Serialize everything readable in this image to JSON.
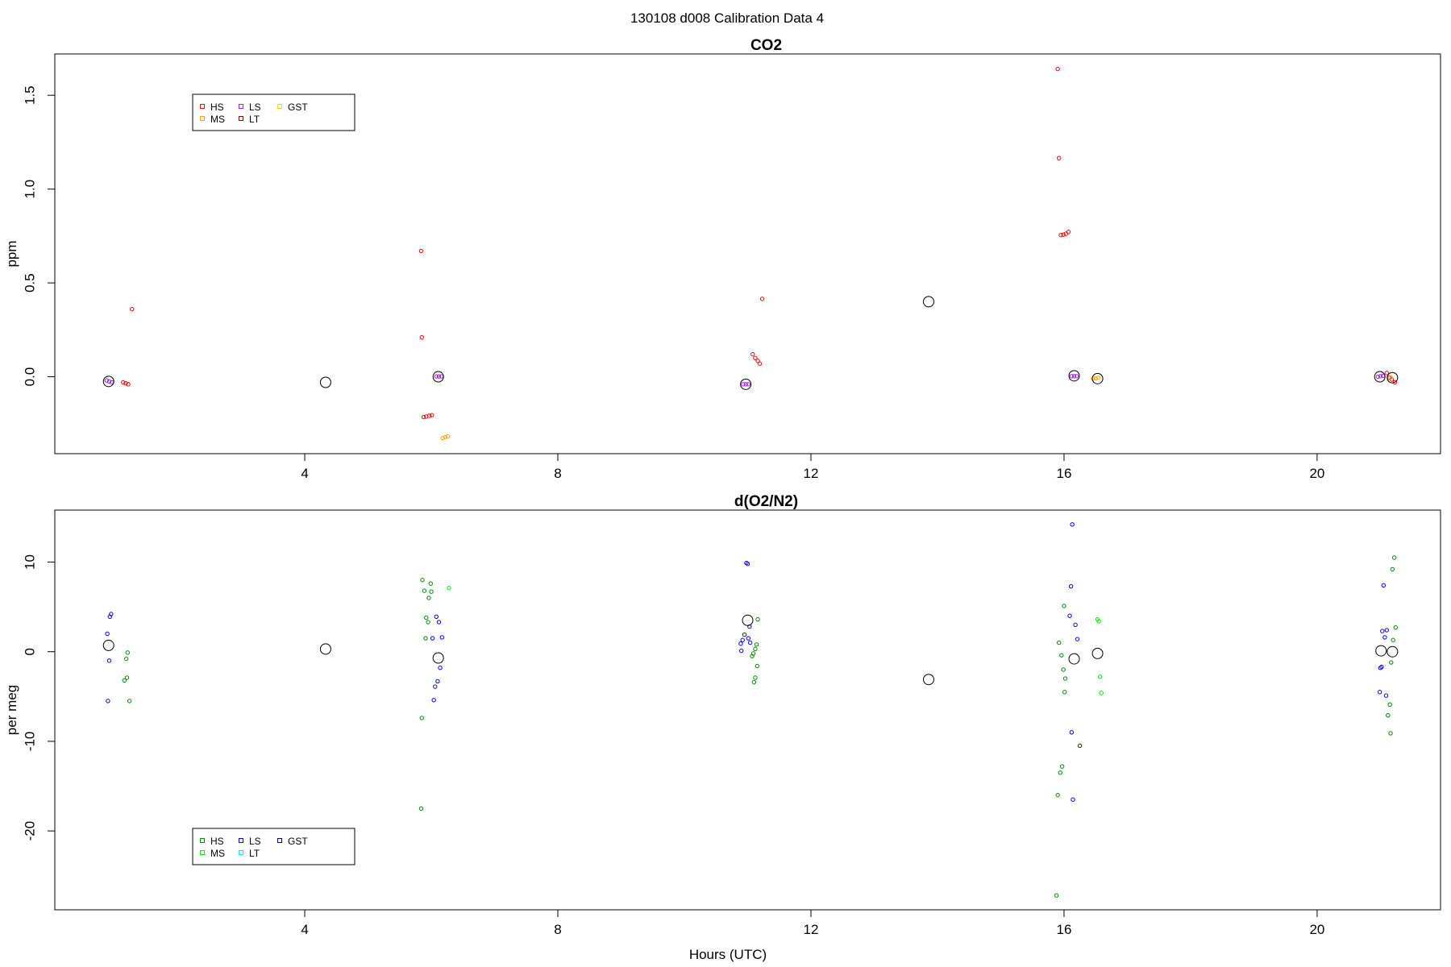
{
  "figure": {
    "title": "130108   d008   Calibration Data 4",
    "xlabel": "Hours (UTC)"
  },
  "colors": {
    "HS": "#ff0000",
    "MS": "#ffa500",
    "LS": "#a020f0",
    "LT": "#8b0000",
    "GST": "#ffd700",
    "HS2": "#008b00",
    "MS2": "#00ee00",
    "LS2": "#0000ff",
    "LT2": "#00eeee",
    "GST2": "#00008b"
  },
  "chart_data": [
    {
      "type": "scatter",
      "title": "CO2",
      "xlabel": "Hours (UTC)",
      "ylabel": "ppm",
      "xlim": [
        0.05,
        21.95
      ],
      "ylim": [
        -0.41,
        1.72
      ],
      "xticks": [
        "4",
        "8",
        "12",
        "16",
        "20"
      ],
      "yticks": [
        "0.0",
        "0.5",
        "1.0",
        "1.5"
      ],
      "legend": {
        "placement": "top-left",
        "entries": [
          "HS",
          "MS",
          "LS",
          "LT",
          "GST"
        ]
      },
      "series": [
        {
          "name": "HS",
          "color": "#ff0000",
          "points": [
            [
              1.27,
              0.36
            ],
            [
              1.13,
              -0.03
            ],
            [
              1.17,
              -0.035
            ],
            [
              1.21,
              -0.04
            ],
            [
              5.84,
              0.67
            ],
            [
              5.85,
              0.21
            ],
            [
              5.88,
              -0.215
            ],
            [
              5.92,
              -0.212
            ],
            [
              5.97,
              -0.208
            ],
            [
              6.01,
              -0.205
            ],
            [
              11.23,
              0.415
            ],
            [
              11.08,
              0.12
            ],
            [
              11.12,
              0.1
            ],
            [
              11.16,
              0.085
            ],
            [
              11.19,
              0.07
            ],
            [
              15.9,
              1.64
            ],
            [
              15.92,
              1.165
            ],
            [
              15.95,
              0.755
            ],
            [
              15.99,
              0.757
            ],
            [
              16.03,
              0.762
            ],
            [
              16.07,
              0.772
            ],
            [
              21.1,
              0.02
            ],
            [
              21.14,
              -0.005
            ],
            [
              21.18,
              -0.015
            ],
            [
              21.23,
              -0.03
            ]
          ]
        },
        {
          "name": "MS",
          "color": "#ffa500",
          "points": [
            [
              6.18,
              -0.327
            ],
            [
              6.22,
              -0.322
            ],
            [
              6.26,
              -0.318
            ],
            [
              16.46,
              -0.01
            ],
            [
              16.5,
              -0.008
            ],
            [
              16.54,
              -0.005
            ],
            [
              21.16,
              -0.003
            ]
          ]
        },
        {
          "name": "LS",
          "color": "#a020f0",
          "points": [
            [
              0.87,
              -0.02
            ],
            [
              0.91,
              -0.025
            ],
            [
              0.95,
              -0.03
            ],
            [
              6.08,
              0.002
            ],
            [
              6.12,
              0.002
            ],
            [
              6.16,
              0.002
            ],
            [
              10.93,
              -0.04
            ],
            [
              10.97,
              -0.04
            ],
            [
              11.01,
              -0.04
            ],
            [
              16.12,
              0.003
            ],
            [
              16.16,
              0.003
            ],
            [
              16.2,
              0.003
            ],
            [
              20.96,
              0.0
            ],
            [
              21.0,
              0.003
            ],
            [
              21.04,
              0.005
            ]
          ]
        }
      ],
      "means": [
        [
          0.9,
          -0.025
        ],
        [
          4.33,
          -0.03
        ],
        [
          6.11,
          0.0
        ],
        [
          10.97,
          -0.04
        ],
        [
          13.86,
          0.4
        ],
        [
          16.16,
          0.005
        ],
        [
          16.53,
          -0.01
        ],
        [
          20.99,
          0.0
        ],
        [
          21.19,
          -0.005
        ]
      ]
    },
    {
      "type": "scatter",
      "title": "d(O2/N2)",
      "xlabel": "Hours (UTC)",
      "ylabel": "per meg",
      "xlim": [
        0.05,
        21.95
      ],
      "ylim": [
        -28.8,
        15.8
      ],
      "xticks": [
        "4",
        "8",
        "12",
        "16",
        "20"
      ],
      "yticks": [
        "-20",
        "-10",
        "0",
        "10"
      ],
      "legend": {
        "placement": "bottom-left",
        "entries": [
          "HS",
          "MS",
          "LS",
          "LT",
          "GST"
        ]
      },
      "series": [
        {
          "name": "HS",
          "color": "#008b00",
          "points": [
            [
              1.2,
              -0.1
            ],
            [
              1.18,
              -0.8
            ],
            [
              1.15,
              -3.2
            ],
            [
              1.19,
              -2.9
            ],
            [
              1.23,
              -5.5
            ],
            [
              5.86,
              8.0
            ],
            [
              5.99,
              7.6
            ],
            [
              5.89,
              6.8
            ],
            [
              6.0,
              6.7
            ],
            [
              5.96,
              6.0
            ],
            [
              5.92,
              3.8
            ],
            [
              5.95,
              3.3
            ],
            [
              5.91,
              1.5
            ],
            [
              5.85,
              -7.4
            ],
            [
              5.84,
              -17.5
            ],
            [
              11.16,
              3.6
            ],
            [
              11.14,
              0.8
            ],
            [
              11.12,
              0.3
            ],
            [
              11.09,
              -0.2
            ],
            [
              11.07,
              -0.5
            ],
            [
              11.15,
              -1.6
            ],
            [
              11.12,
              -2.9
            ],
            [
              11.1,
              -3.4
            ],
            [
              16.0,
              5.1
            ],
            [
              15.92,
              1.0
            ],
            [
              15.96,
              -0.4
            ],
            [
              15.99,
              -2.0
            ],
            [
              16.02,
              -3.0
            ],
            [
              16.01,
              -4.5
            ],
            [
              15.97,
              -12.8
            ],
            [
              15.94,
              -13.5
            ],
            [
              15.9,
              -16.0
            ],
            [
              15.88,
              -27.2
            ],
            [
              21.22,
              10.5
            ],
            [
              21.19,
              9.2
            ],
            [
              21.24,
              2.7
            ],
            [
              21.2,
              1.3
            ],
            [
              21.17,
              -1.2
            ],
            [
              21.15,
              -5.9
            ],
            [
              21.12,
              -7.1
            ],
            [
              21.16,
              -9.1
            ]
          ]
        },
        {
          "name": "MS",
          "color": "#00ee00",
          "points": [
            [
              6.28,
              7.1
            ],
            [
              16.53,
              3.6
            ],
            [
              16.55,
              3.4
            ],
            [
              16.57,
              -2.8
            ],
            [
              16.59,
              -4.6
            ]
          ]
        },
        {
          "name": "LS",
          "color": "#0000ff",
          "points": [
            [
              0.94,
              4.2
            ],
            [
              0.92,
              3.9
            ],
            [
              0.88,
              2.0
            ],
            [
              0.91,
              -1.0
            ],
            [
              0.89,
              -5.5
            ],
            [
              6.08,
              3.9
            ],
            [
              6.12,
              3.3
            ],
            [
              6.17,
              1.6
            ],
            [
              6.02,
              1.5
            ],
            [
              6.14,
              -1.8
            ],
            [
              6.1,
              -3.3
            ],
            [
              6.06,
              -3.9
            ],
            [
              6.04,
              -5.4
            ],
            [
              10.98,
              9.9
            ],
            [
              11.0,
              9.8
            ],
            [
              11.03,
              2.8
            ],
            [
              10.95,
              1.9
            ],
            [
              11.01,
              1.5
            ],
            [
              10.92,
              1.3
            ],
            [
              11.04,
              1.0
            ],
            [
              10.89,
              0.9
            ],
            [
              10.9,
              0.1
            ],
            [
              16.13,
              14.2
            ],
            [
              16.11,
              7.3
            ],
            [
              16.09,
              4.0
            ],
            [
              16.18,
              3.0
            ],
            [
              16.21,
              1.4
            ],
            [
              16.12,
              -9.0
            ],
            [
              16.25,
              -10.5
            ],
            [
              16.14,
              -16.5
            ],
            [
              21.05,
              7.4
            ],
            [
              21.03,
              2.3
            ],
            [
              21.1,
              2.4
            ],
            [
              21.07,
              1.6
            ],
            [
              21.0,
              -1.8
            ],
            [
              21.02,
              -1.7
            ],
            [
              20.99,
              -4.5
            ],
            [
              21.09,
              -4.9
            ]
          ]
        }
      ],
      "means": [
        [
          0.9,
          0.7
        ],
        [
          4.33,
          0.3
        ],
        [
          6.11,
          -0.7
        ],
        [
          11.0,
          3.5
        ],
        [
          13.86,
          -3.1
        ],
        [
          16.16,
          -0.8
        ],
        [
          16.53,
          -0.2
        ],
        [
          21.01,
          0.1
        ],
        [
          21.19,
          0.0
        ]
      ]
    }
  ]
}
